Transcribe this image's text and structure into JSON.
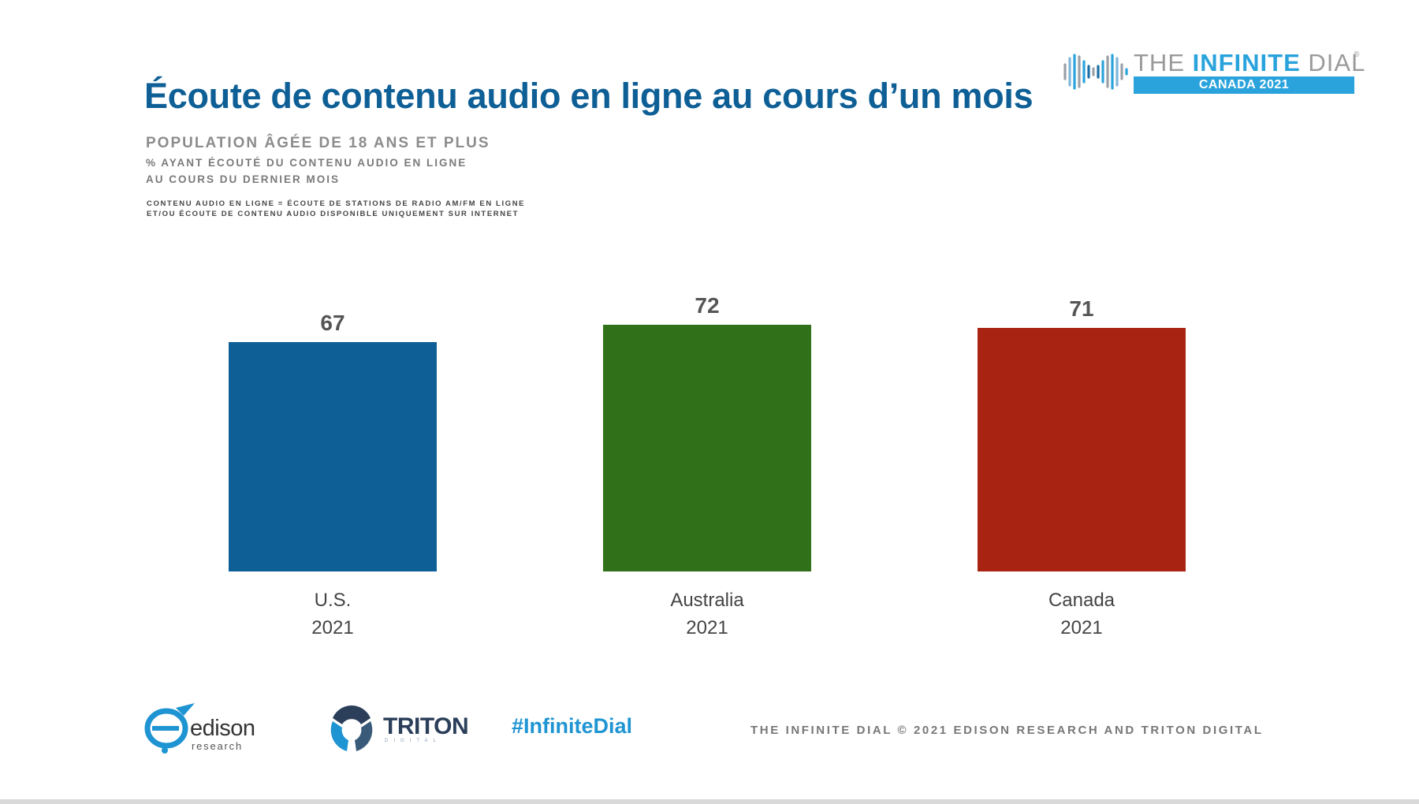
{
  "header": {
    "title": "Écoute de contenu audio en ligne au cours d’un mois",
    "subtitle": "POPULATION ÂGÉE DE 18 ANS ET PLUS",
    "measure_line1": "% AYANT ÉCOUTÉ DU CONTENU AUDIO EN LIGNE",
    "measure_line2": "AU COURS DU DERNIER MOIS",
    "note_line1": "CONTENU AUDIO EN LIGNE = ÉCOUTE DE STATIONS DE RADIO AM/FM EN LIGNE",
    "note_line2": "ET/OU ÉCOUTE DE CONTENU AUDIO DISPONIBLE UNIQUEMENT SUR INTERNET"
  },
  "brand_logo": {
    "word_the": "THE ",
    "word_infinite": "INFINITE",
    "word_dial": " DIAL",
    "registered": "®",
    "band_text": "CANADA 2021",
    "color": "#2aa3dc",
    "icon": "infinity-waveform-icon"
  },
  "chart_data": {
    "type": "bar",
    "categories": [
      {
        "line1": "U.S.",
        "line2": "2021"
      },
      {
        "line1": "Australia",
        "line2": "2021"
      },
      {
        "line1": "Canada",
        "line2": "2021"
      }
    ],
    "values": [
      67,
      72,
      71
    ],
    "colors": [
      "#0e5f96",
      "#2f7018",
      "#a82312"
    ],
    "data_labels": [
      "67",
      "72",
      "71"
    ],
    "ylim": [
      0,
      100
    ],
    "grid": false,
    "legend": "none"
  },
  "footer": {
    "edison_name": "edison",
    "edison_sub": "research",
    "triton_name": "TRITON",
    "triton_sub": "DIGITAL",
    "hashtag": "#InfiniteDial",
    "copyright": "THE INFINITE DIAL   © 2021 EDISON RESEARCH AND TRITON DIGITAL"
  }
}
